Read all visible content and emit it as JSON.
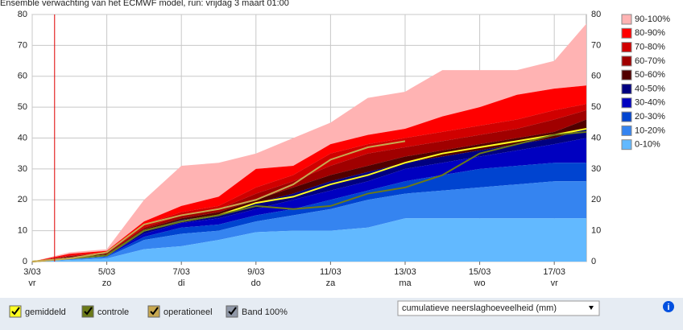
{
  "chart_data": {
    "type": "fan",
    "title": "Ensemble verwachting van het ECMWF model, run: vrijdag 3 maart 01:00",
    "x": [
      0,
      1,
      2,
      3,
      4,
      5,
      6,
      7,
      8,
      9,
      10,
      11,
      12,
      13,
      14,
      14.86
    ],
    "xlim": [
      0,
      14.86
    ],
    "xticks": [
      {
        "value": 0,
        "label": "3/03"
      },
      {
        "value": 2,
        "label": "5/03"
      },
      {
        "value": 4,
        "label": "7/03"
      },
      {
        "value": 6,
        "label": "9/03"
      },
      {
        "value": 8,
        "label": "11/03"
      },
      {
        "value": 10,
        "label": "13/03"
      },
      {
        "value": 12,
        "label": "15/03"
      },
      {
        "value": 14,
        "label": "17/03"
      }
    ],
    "xtick_sublabels": [
      "vr",
      "zo",
      "di",
      "do",
      "za",
      "ma",
      "wo",
      "vr"
    ],
    "now_line": 0.6,
    "ylim": [
      0,
      80
    ],
    "yticks": [
      0,
      10,
      20,
      30,
      40,
      50,
      60,
      70,
      80
    ],
    "grid": true,
    "bands": [
      {
        "name": "90-100%",
        "color": "#ffb3b3",
        "values": [
          0,
          3,
          4,
          20,
          31,
          32,
          35,
          40,
          45,
          53,
          55,
          62,
          62,
          62,
          65,
          77
        ]
      },
      {
        "name": "80-90%",
        "color": "#ff0000",
        "values": [
          0,
          2.5,
          3.5,
          13,
          18,
          21,
          30,
          31,
          38,
          41,
          43,
          47,
          50,
          54,
          56,
          57
        ]
      },
      {
        "name": "70-80%",
        "color": "#d00000",
        "values": [
          0,
          2,
          3,
          12,
          16,
          18,
          24,
          28,
          35,
          38,
          40,
          42,
          44,
          46,
          49,
          51
        ]
      },
      {
        "name": "60-70%",
        "color": "#a00000",
        "values": [
          0,
          1.8,
          2.8,
          11,
          15,
          17,
          22,
          26,
          31,
          35,
          37,
          39,
          41,
          43,
          46,
          49
        ]
      },
      {
        "name": "50-60%",
        "color": "#500000",
        "values": [
          0,
          1.5,
          2.5,
          10.5,
          14,
          16,
          20,
          24,
          28,
          31,
          34,
          36,
          38,
          40,
          42,
          46
        ]
      },
      {
        "name": "40-50%",
        "color": "#000080",
        "values": [
          0,
          1.3,
          2.2,
          10,
          13.5,
          15,
          19,
          22,
          26,
          29,
          32,
          34,
          36,
          38,
          40,
          43
        ]
      },
      {
        "name": "30-40%",
        "color": "#0000c0",
        "values": [
          0,
          1.1,
          2,
          9,
          12.5,
          14,
          17,
          20,
          23,
          26,
          30,
          32,
          34,
          36,
          38,
          40
        ]
      },
      {
        "name": "20-30%",
        "color": "#0044d0",
        "values": [
          0,
          1,
          1.8,
          8,
          11,
          12,
          15,
          17,
          20,
          23,
          26,
          28,
          30,
          31,
          32,
          32
        ]
      },
      {
        "name": "10-20%",
        "color": "#3584f0",
        "values": [
          0,
          0.8,
          1.5,
          7,
          9,
          10,
          13,
          15,
          17,
          20,
          22,
          23,
          24,
          25,
          26,
          26
        ]
      },
      {
        "name": "0-10%",
        "color": "#62b9ff",
        "values": [
          0,
          0.5,
          1,
          4,
          5,
          7,
          9.5,
          10,
          10,
          11,
          14,
          14,
          14,
          14,
          14,
          14
        ]
      }
    ],
    "series": [
      {
        "name": "gemiddeld",
        "color": "#ffff20",
        "values": [
          0,
          1,
          2,
          10,
          13,
          15,
          19,
          21,
          25,
          28,
          32,
          35,
          37,
          39,
          41,
          43
        ]
      },
      {
        "name": "controle",
        "color": "#6b7a18",
        "values": [
          0,
          1,
          2,
          10,
          13,
          15,
          18,
          17,
          18,
          22,
          24,
          28,
          35,
          38,
          41,
          42
        ]
      },
      {
        "name": "operationeel",
        "color": "#c8a850",
        "values": [
          0,
          1,
          3,
          12,
          15,
          17,
          20,
          25,
          33,
          37,
          39,
          null,
          null,
          null,
          null,
          null
        ]
      }
    ]
  },
  "controls": {
    "band_checkbox": "Band 100%",
    "dropdown": "cumulatieve neerslaghoeveelheid (mm)",
    "info": "i"
  }
}
